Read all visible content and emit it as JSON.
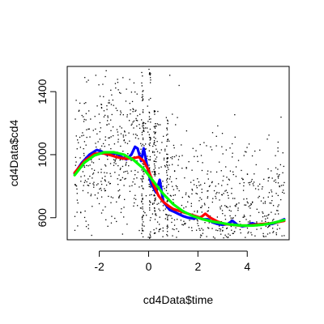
{
  "chart_data": {
    "type": "scatter",
    "title": "",
    "xlabel": "cd4Data$time",
    "ylabel": "cd4Data$cd4",
    "xlim": [
      -3.3,
      5.7
    ],
    "ylim": [
      460,
      1560
    ],
    "xticks": [
      -2,
      0,
      2,
      4
    ],
    "yticks": [
      600,
      1000,
      1400
    ],
    "grid": false,
    "legend": "none",
    "scatter": {
      "color": "#000000",
      "x_range": [
        -3.0,
        5.5
      ],
      "y_range": [
        470,
        1550
      ],
      "columns_at": [
        -0.25,
        0.05,
        0.25,
        0.75
      ]
    },
    "series": [
      {
        "color": "#0000ff",
        "x": [
          -3.0,
          -2.7,
          -2.4,
          -2.1,
          -1.9,
          -1.7,
          -1.5,
          -1.3,
          -1.1,
          -0.9,
          -0.7,
          -0.55,
          -0.45,
          -0.3,
          -0.2,
          -0.1,
          0.0,
          0.1,
          0.2,
          0.3,
          0.45,
          0.6,
          0.7,
          0.85,
          1.0,
          1.2,
          1.4,
          1.6,
          1.8,
          2.0,
          2.2,
          2.4,
          2.6,
          2.8,
          3.0,
          3.2,
          3.4,
          3.6,
          3.8,
          4.0,
          4.2,
          4.4,
          4.6,
          4.8,
          5.0,
          5.2,
          5.5
        ],
        "y": [
          880,
          950,
          1000,
          1030,
          1020,
          1000,
          1000,
          1010,
          985,
          970,
          1000,
          1050,
          1040,
          960,
          1040,
          960,
          880,
          820,
          790,
          760,
          840,
          700,
          680,
          650,
          640,
          625,
          610,
          600,
          595,
          600,
          590,
          590,
          570,
          560,
          555,
          560,
          580,
          555,
          545,
          550,
          565,
          555,
          560,
          560,
          560,
          570,
          590
        ]
      },
      {
        "color": "#ff0000",
        "x": [
          -3.0,
          -2.6,
          -2.2,
          -1.9,
          -1.6,
          -1.3,
          -1.0,
          -0.7,
          -0.4,
          -0.2,
          0.0,
          0.2,
          0.4,
          0.6,
          0.8,
          1.0,
          1.3,
          1.6,
          1.9,
          2.1,
          2.3,
          2.5,
          2.8,
          3.1,
          3.4,
          3.7,
          4.0,
          4.3,
          4.6,
          5.0,
          5.5
        ],
        "y": [
          885,
          960,
          1005,
          1010,
          1000,
          985,
          975,
          975,
          985,
          960,
          900,
          810,
          740,
          700,
          675,
          655,
          640,
          625,
          610,
          600,
          625,
          600,
          575,
          560,
          555,
          550,
          550,
          555,
          560,
          565,
          580
        ]
      },
      {
        "color": "#00ff00",
        "x": [
          -3.0,
          -2.6,
          -2.2,
          -1.8,
          -1.4,
          -1.0,
          -0.6,
          -0.2,
          0.2,
          0.6,
          1.0,
          1.4,
          1.8,
          2.2,
          2.6,
          3.0,
          3.4,
          3.8,
          4.2,
          4.6,
          5.0,
          5.5
        ],
        "y": [
          870,
          950,
          995,
          1015,
          1015,
          1000,
          965,
          910,
          830,
          750,
          685,
          640,
          610,
          590,
          575,
          565,
          555,
          550,
          550,
          555,
          565,
          585
        ]
      }
    ]
  }
}
